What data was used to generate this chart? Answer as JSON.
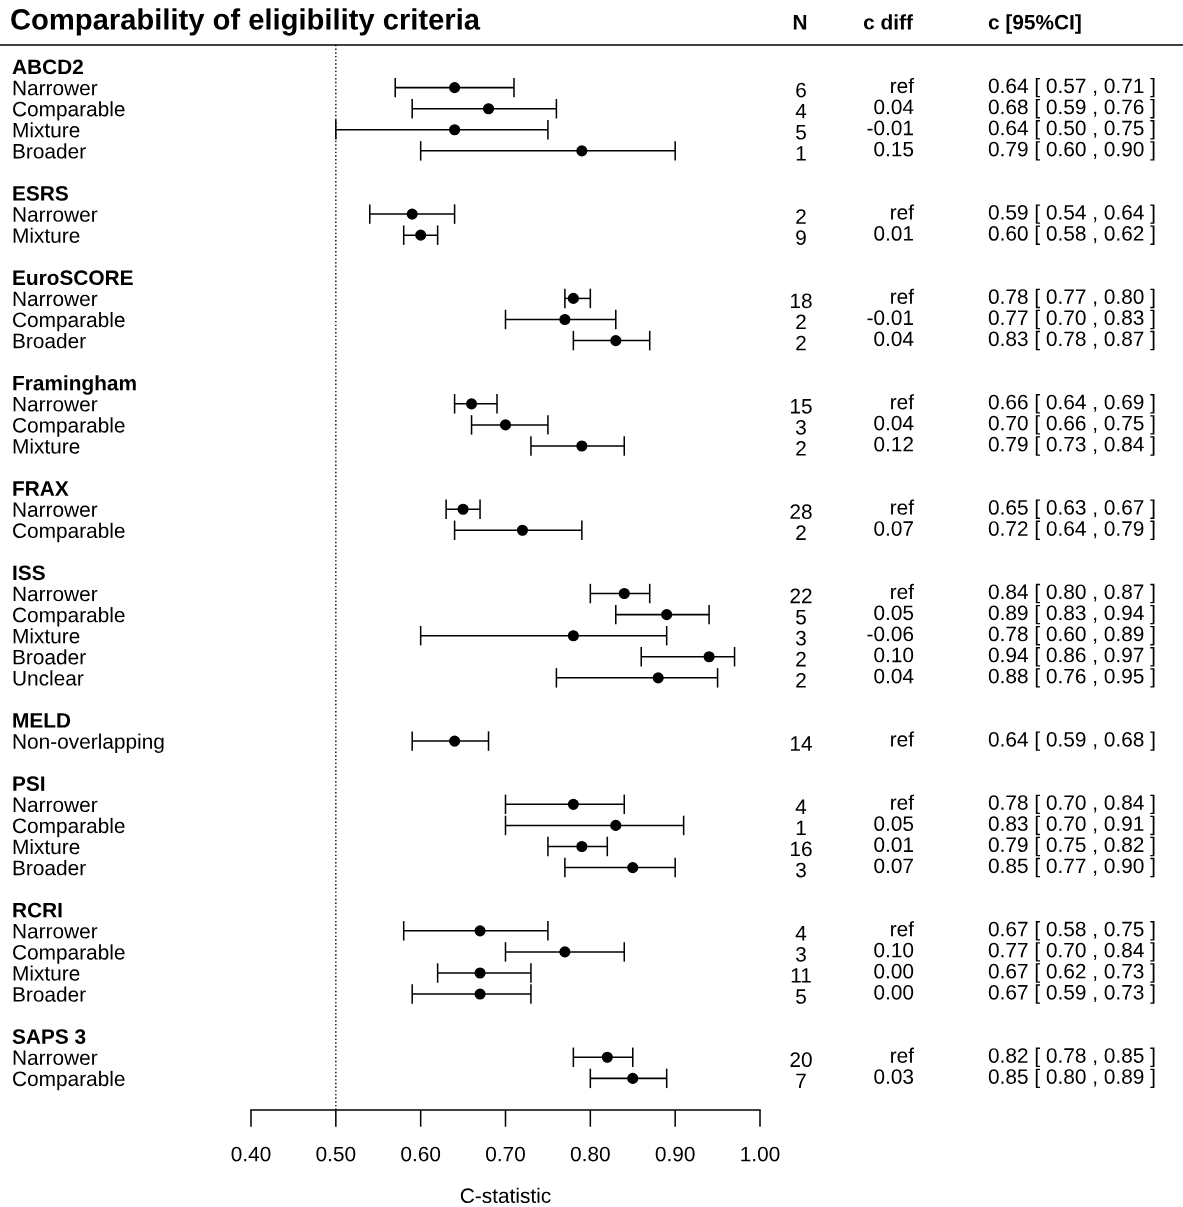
{
  "chart_data": {
    "type": "scatter",
    "orientation": "horizontal",
    "title": "Comparability of eligibility criteria",
    "xlabel": "C-statistic",
    "categories": [
      "ABCD2",
      "Narrower",
      "Comparable",
      "Mixture",
      "Broader",
      null,
      "ESRS",
      "Narrower",
      "Mixture",
      null,
      "EuroSCORE",
      "Narrower",
      "Comparable",
      "Broader",
      null,
      "Framingham",
      "Narrower",
      "Comparable",
      "Mixture",
      null,
      "FRAX",
      "Narrower",
      "Comparable",
      null,
      "ISS",
      "Narrower",
      "Comparable",
      "Mixture",
      "Broader",
      "Unclear",
      null,
      "MELD",
      "Non-overlapping",
      null,
      "PSI",
      "Narrower",
      "Comparable",
      "Mixture",
      "Broader",
      null,
      "RCRI",
      "Narrower",
      "Comparable",
      "Mixture",
      "Broader",
      null,
      "SAPS 3",
      "Narrower",
      "Comparable"
    ],
    "series": [
      {
        "color": "#000000",
        "values": [
          null,
          0.64,
          0.68,
          0.64,
          0.79,
          null,
          null,
          0.59,
          0.6,
          null,
          null,
          0.78,
          0.77,
          0.83,
          null,
          null,
          0.66,
          0.7,
          0.79,
          null,
          null,
          0.65,
          0.72,
          null,
          null,
          0.84,
          0.89,
          0.78,
          0.94,
          0.88,
          null,
          null,
          0.64,
          null,
          null,
          0.78,
          0.83,
          0.79,
          0.85,
          null,
          null,
          0.67,
          0.77,
          0.67,
          0.67,
          null,
          null,
          0.82,
          0.85
        ],
        "errors": [
          null,
          [
            0.57,
            0.71
          ],
          [
            0.59,
            0.76
          ],
          [
            0.5,
            0.75
          ],
          [
            0.6,
            0.9
          ],
          null,
          null,
          [
            0.54,
            0.64
          ],
          [
            0.58,
            0.62
          ],
          null,
          null,
          [
            0.77,
            0.8
          ],
          [
            0.7,
            0.83
          ],
          [
            0.78,
            0.87
          ],
          null,
          null,
          [
            0.64,
            0.69
          ],
          [
            0.66,
            0.75
          ],
          [
            0.73,
            0.84
          ],
          null,
          null,
          [
            0.63,
            0.67
          ],
          [
            0.64,
            0.79
          ],
          null,
          null,
          [
            0.8,
            0.87
          ],
          [
            0.83,
            0.94
          ],
          [
            0.6,
            0.89
          ],
          [
            0.86,
            0.97
          ],
          [
            0.76,
            0.95
          ],
          null,
          null,
          [
            0.59,
            0.68
          ],
          null,
          null,
          [
            0.7,
            0.84
          ],
          [
            0.7,
            0.91
          ],
          [
            0.75,
            0.82
          ],
          [
            0.77,
            0.9
          ],
          null,
          null,
          [
            0.58,
            0.75
          ],
          [
            0.7,
            0.84
          ],
          [
            0.62,
            0.73
          ],
          [
            0.59,
            0.73
          ],
          null,
          null,
          [
            0.78,
            0.85
          ],
          [
            0.8,
            0.89
          ]
        ],
        "value_labels": [
          null,
          "0.64 [ 0.57 , 0.71 ]",
          "0.68 [ 0.59 , 0.76 ]",
          "0.64 [ 0.50 , 0.75 ]",
          "0.79 [ 0.60 , 0.90 ]",
          null,
          null,
          "0.59 [ 0.54 , 0.64 ]",
          "0.60 [ 0.58 , 0.62 ]",
          null,
          null,
          "0.78 [ 0.77 , 0.80 ]",
          "0.77 [ 0.70 , 0.83 ]",
          "0.83 [ 0.78 , 0.87 ]",
          null,
          null,
          "0.66 [ 0.64 , 0.69 ]",
          "0.70 [ 0.66 , 0.75 ]",
          "0.79 [ 0.73 , 0.84 ]",
          null,
          null,
          "0.65 [ 0.63 , 0.67 ]",
          "0.72 [ 0.64 , 0.79 ]",
          null,
          null,
          "0.84 [ 0.80 , 0.87 ]",
          "0.89 [ 0.83 , 0.94 ]",
          "0.78 [ 0.60 , 0.89 ]",
          "0.94 [ 0.86 , 0.97 ]",
          "0.88 [ 0.76 , 0.95 ]",
          null,
          null,
          "0.64 [ 0.59 , 0.68 ]",
          null,
          null,
          "0.78 [ 0.70 , 0.84 ]",
          "0.83 [ 0.70 , 0.91 ]",
          "0.79 [ 0.75 , 0.82 ]",
          "0.85 [ 0.77 , 0.90 ]",
          null,
          null,
          "0.67 [ 0.58 , 0.75 ]",
          "0.77 [ 0.70 , 0.84 ]",
          "0.67 [ 0.62 , 0.73 ]",
          "0.67 [ 0.59 , 0.73 ]",
          null,
          null,
          "0.82 [ 0.78 , 0.85 ]",
          "0.85 [ 0.80 , 0.89 ]"
        ]
      }
    ],
    "annotations": [
      "N",
      "c diff",
      "c [95%CI]",
      "6",
      "ref",
      "4",
      "0.04",
      "5",
      "-0.01",
      "1",
      "0.15",
      "2",
      "ref",
      "9",
      "0.01",
      "18",
      "ref",
      "2",
      "-0.01",
      "2",
      "0.04",
      "15",
      "ref",
      "3",
      "0.04",
      "2",
      "0.12",
      "28",
      "ref",
      "2",
      "0.07",
      "22",
      "ref",
      "5",
      "0.05",
      "3",
      "-0.06",
      "2",
      "0.10",
      "2",
      "0.04",
      "14",
      "ref",
      "4",
      "ref",
      "1",
      "0.05",
      "16",
      "0.01",
      "3",
      "0.07",
      "4",
      "ref",
      "3",
      "0.10",
      "11",
      "0.00",
      "5",
      "0.00",
      "20",
      "ref",
      "7",
      "0.03"
    ],
    "xlim": [
      0.4,
      1.0
    ],
    "xticks": [
      {
        "value": 0.4,
        "label": "0.40"
      },
      {
        "value": 0.5,
        "label": "0.50"
      },
      {
        "value": 0.6,
        "label": "0.60"
      },
      {
        "value": 0.7,
        "label": "0.70"
      },
      {
        "value": 0.8,
        "label": "0.80"
      },
      {
        "value": 0.9,
        "label": "0.90"
      },
      {
        "value": 1.0,
        "label": "1.00"
      }
    ],
    "ref_lines": [
      {
        "axis": "x",
        "value": 0.5,
        "line_style": "dotted",
        "color": "#000000"
      }
    ],
    "marker": "circle",
    "grid": false,
    "legend": false,
    "data_labels": false
  }
}
